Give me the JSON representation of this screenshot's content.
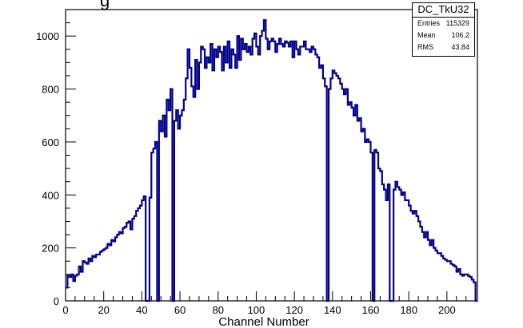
{
  "title_fragment": "g",
  "stats": {
    "name": "DC_TkU32",
    "rows": [
      {
        "key": "Entries",
        "value": "115329"
      },
      {
        "key": "Mean",
        "value": "106.2"
      },
      {
        "key": "RMS",
        "value": "43.84"
      }
    ]
  },
  "colors": {
    "line": "#00008b",
    "axis": "#000000"
  },
  "chart_data": {
    "type": "histogram",
    "xlabel": "Channel Number",
    "ylabel": "",
    "xlim": [
      0,
      216
    ],
    "ylim": [
      0,
      1100
    ],
    "xticks": [
      0,
      20,
      40,
      60,
      80,
      100,
      120,
      140,
      160,
      180,
      200
    ],
    "yticks": [
      0,
      200,
      400,
      600,
      800,
      1000
    ],
    "bin_width": 1,
    "x_start": 0,
    "values": [
      50,
      95,
      90,
      100,
      75,
      95,
      100,
      130,
      110,
      150,
      145,
      140,
      160,
      150,
      170,
      165,
      175,
      175,
      185,
      190,
      195,
      200,
      215,
      210,
      230,
      225,
      240,
      250,
      260,
      255,
      275,
      280,
      295,
      300,
      270,
      310,
      320,
      340,
      350,
      360,
      380,
      395,
      0,
      0,
      390,
      560,
      575,
      600,
      0,
      680,
      640,
      700,
      620,
      760,
      720,
      800,
      0,
      680,
      720,
      650,
      700,
      720,
      760,
      840,
      950,
      880,
      810,
      770,
      910,
      800,
      900,
      960,
      950,
      880,
      920,
      900,
      970,
      870,
      950,
      920,
      960,
      940,
      870,
      960,
      900,
      980,
      880,
      950,
      930,
      880,
      1000,
      910,
      990,
      950,
      970,
      940,
      960,
      930,
      990,
      1010,
      960,
      930,
      1000,
      1020,
      1060,
      990,
      950,
      980,
      990,
      980,
      940,
      970,
      990,
      970,
      960,
      980,
      975,
      960,
      980,
      920,
      980,
      950,
      930,
      960,
      960,
      980,
      950,
      950,
      940,
      960,
      950,
      930,
      920,
      880,
      890,
      840,
      810,
      0,
      800,
      840,
      870,
      860,
      850,
      840,
      820,
      800,
      780,
      800,
      740,
      750,
      730,
      700,
      740,
      680,
      690,
      640,
      650,
      600,
      610,
      600,
      560,
      0,
      570,
      560,
      500,
      490,
      440,
      420,
      380,
      440,
      0,
      0,
      420,
      450,
      430,
      420,
      400,
      410,
      380,
      380,
      360,
      340,
      330,
      340,
      320,
      300,
      280,
      260,
      240,
      260,
      230,
      210,
      230,
      200,
      190,
      180,
      180,
      170,
      160,
      155,
      150,
      150,
      140,
      135,
      130,
      110,
      120,
      100,
      95,
      100,
      100,
      95,
      90,
      80,
      70,
      0
    ]
  }
}
